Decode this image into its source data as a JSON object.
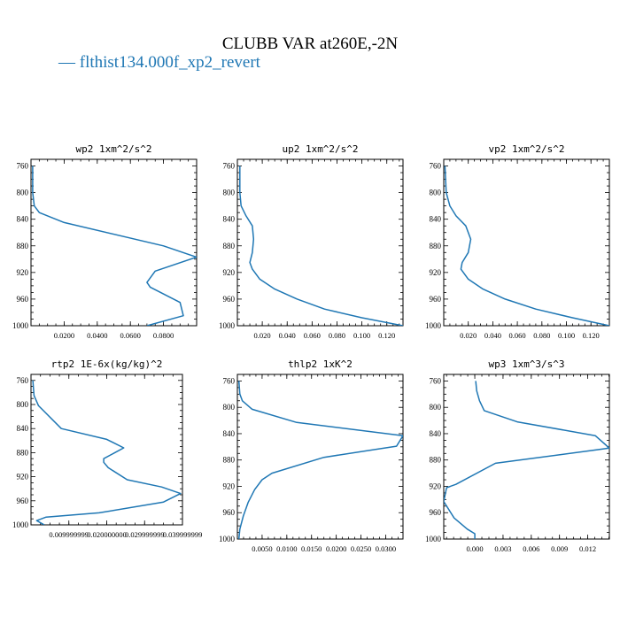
{
  "figure": {
    "title": "CLUBB VAR at260E,-2N",
    "legend": "— flthist134.000f_xp2_revert",
    "series_color": "#1f77b4"
  },
  "chart_data": [
    {
      "type": "line",
      "title": "wp2  1xm^2/s^2",
      "ylim": [
        1000,
        750
      ],
      "xlim": [
        0,
        0.1
      ],
      "yticks": [
        "760",
        "800",
        "840",
        "880",
        "920",
        "960",
        "1000"
      ],
      "xticks": [
        "0.0200",
        "0.0400",
        "0.0600",
        "0.0800"
      ],
      "series": [
        {
          "x": [
            0.001,
            0.001,
            0.002,
            0.005,
            0.02,
            0.08,
            0.1,
            0.075,
            0.07,
            0.072,
            0.09,
            0.092,
            0.07
          ],
          "y": [
            760,
            800,
            820,
            830,
            845,
            880,
            897,
            918,
            935,
            942,
            965,
            985,
            1000
          ]
        }
      ]
    },
    {
      "type": "line",
      "title": "up2  1xm^2/s^2",
      "ylim": [
        1000,
        750
      ],
      "xlim": [
        0,
        0.133
      ],
      "yticks": [
        "760",
        "800",
        "840",
        "880",
        "920",
        "960",
        "1000"
      ],
      "xticks": [
        "0.020",
        "0.040",
        "0.060",
        "0.080",
        "0.100",
        "0.120"
      ],
      "series": [
        {
          "x": [
            0.002,
            0.002,
            0.003,
            0.007,
            0.012,
            0.013,
            0.012,
            0.01,
            0.012,
            0.018,
            0.03,
            0.048,
            0.07,
            0.1,
            0.133
          ],
          "y": [
            760,
            800,
            820,
            835,
            850,
            870,
            890,
            905,
            915,
            930,
            945,
            960,
            975,
            988,
            1000
          ]
        }
      ]
    },
    {
      "type": "line",
      "title": "vp2  1xm^2/s^2",
      "ylim": [
        1000,
        750
      ],
      "xlim": [
        0,
        0.135
      ],
      "yticks": [
        "760",
        "800",
        "840",
        "880",
        "920",
        "960",
        "1000"
      ],
      "xticks": [
        "0.020",
        "0.040",
        "0.060",
        "0.080",
        "0.100",
        "0.120"
      ],
      "series": [
        {
          "x": [
            0.001,
            0.002,
            0.005,
            0.01,
            0.018,
            0.022,
            0.02,
            0.015,
            0.014,
            0.02,
            0.032,
            0.05,
            0.075,
            0.105,
            0.135
          ],
          "y": [
            760,
            800,
            820,
            835,
            850,
            870,
            890,
            905,
            915,
            930,
            945,
            960,
            975,
            988,
            1000
          ]
        }
      ]
    },
    {
      "type": "line",
      "title": "rtp2  1E-6x(kg/kg)^2",
      "ylim": [
        1000,
        750
      ],
      "xlim": [
        0,
        0.04
      ],
      "yticks": [
        "760",
        "800",
        "840",
        "880",
        "920",
        "960",
        "1000"
      ],
      "xticks": [
        "0.009999999",
        "0.020000000",
        "0.029999999",
        "0.039999999"
      ],
      "series": [
        {
          "x": [
            0.0005,
            0.0008,
            0.002,
            0.008,
            0.02,
            0.0245,
            0.0192,
            0.0192,
            0.0204,
            0.0254,
            0.0345,
            0.0395,
            0.035,
            0.018,
            0.004,
            0.0015,
            0.0035
          ],
          "y": [
            760,
            785,
            802,
            840,
            858,
            872,
            890,
            896,
            905,
            925,
            937,
            948,
            962,
            980,
            987,
            993,
            1000
          ]
        }
      ]
    },
    {
      "type": "line",
      "title": "thlp2  1xK^2",
      "ylim": [
        1000,
        750
      ],
      "xlim": [
        0,
        0.0335
      ],
      "yticks": [
        "760",
        "800",
        "840",
        "880",
        "920",
        "960",
        "1000"
      ],
      "xticks": [
        "0.0050",
        "0.0100",
        "0.0150",
        "0.0200",
        "0.0250",
        "0.0300"
      ],
      "series": [
        {
          "x": [
            0.0003,
            0.0005,
            0.001,
            0.003,
            0.012,
            0.0335,
            0.0322,
            0.0175,
            0.007,
            0.005,
            0.0035,
            0.0022,
            0.0012,
            0.0005,
            0.0003
          ],
          "y": [
            760,
            780,
            790,
            803,
            823,
            843,
            859,
            876,
            900,
            910,
            925,
            944,
            965,
            985,
            1000
          ]
        }
      ]
    },
    {
      "type": "line",
      "title": "wp3  1xm^3/s^3",
      "ylim": [
        1000,
        750
      ],
      "xlim": [
        -0.0033,
        0.0143
      ],
      "yticks": [
        "760",
        "800",
        "840",
        "880",
        "920",
        "960",
        "1000"
      ],
      "xticks": [
        "0.000",
        "0.003",
        "0.006",
        "0.009",
        "0.012"
      ],
      "series": [
        {
          "x": [
            0.0001,
            0.0002,
            0.0005,
            0.001,
            0.0045,
            0.0128,
            0.0143,
            0.0022,
            -0.002,
            -0.003,
            -0.0033,
            -0.0022,
            -0.0008,
            0.0,
            0.0
          ],
          "y": [
            760,
            775,
            790,
            805,
            822,
            843,
            862,
            885,
            917,
            922,
            943,
            968,
            985,
            992,
            1000
          ]
        }
      ]
    }
  ]
}
